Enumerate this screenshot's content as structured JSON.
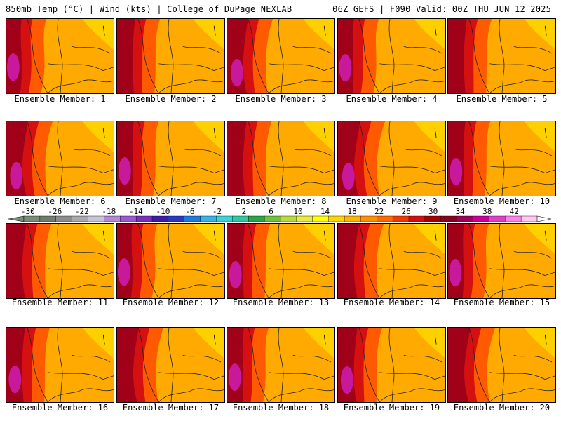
{
  "header": {
    "left": "850mb Temp (°C) | Wind (kts) | College of DuPage NEXLAB",
    "right": "06Z GEFS | F090 Valid: 00Z THU JUN 12 2025"
  },
  "members": [
    {
      "label": "Ensemble Member: 1"
    },
    {
      "label": "Ensemble Member: 2"
    },
    {
      "label": "Ensemble Member: 3"
    },
    {
      "label": "Ensemble Member: 4"
    },
    {
      "label": "Ensemble Member: 5"
    },
    {
      "label": "Ensemble Member: 6"
    },
    {
      "label": "Ensemble Member: 7"
    },
    {
      "label": "Ensemble Member: 8"
    },
    {
      "label": "Ensemble Member: 9"
    },
    {
      "label": "Ensemble Member: 10"
    },
    {
      "label": "Ensemble Member: 11"
    },
    {
      "label": "Ensemble Member: 12"
    },
    {
      "label": "Ensemble Member: 13"
    },
    {
      "label": "Ensemble Member: 14"
    },
    {
      "label": "Ensemble Member: 15"
    },
    {
      "label": "Ensemble Member: 16"
    },
    {
      "label": "Ensemble Member: 17"
    },
    {
      "label": "Ensemble Member: 18"
    },
    {
      "label": "Ensemble Member: 19"
    },
    {
      "label": "Ensemble Member: 20"
    }
  ],
  "legend": {
    "ticks": [
      "-30",
      "-26",
      "-22",
      "-18",
      "-14",
      "-10",
      "-6",
      "-2",
      "2",
      "6",
      "10",
      "14",
      "18",
      "22",
      "26",
      "30",
      "34",
      "38",
      "42"
    ],
    "colors": [
      "#7a8b7a",
      "#6f7e6f",
      "#8c8c8c",
      "#a9a9a9",
      "#c5c5d8",
      "#b08ad8",
      "#9b59d0",
      "#7b2fbe",
      "#3d1ca8",
      "#2a36c8",
      "#1f7ae0",
      "#35b5e8",
      "#37d6d6",
      "#2ec9a0",
      "#26a84a",
      "#6cc43a",
      "#b7dc3a",
      "#e8ec3a",
      "#ffff00",
      "#ffd500",
      "#ffb400",
      "#ff9000",
      "#ff6a00",
      "#f03a00",
      "#d01010",
      "#a80000",
      "#8a0020",
      "#a0005a",
      "#c8009a",
      "#e040c8",
      "#ff80e8",
      "#ffc8f0"
    ]
  },
  "colors": {
    "warm_bg": "#ffaa00",
    "hot": "#ff5a00",
    "hotter": "#d41010",
    "dark_red": "#a00018",
    "magenta": "#c8189c",
    "cool_yellow": "#ffd000"
  }
}
